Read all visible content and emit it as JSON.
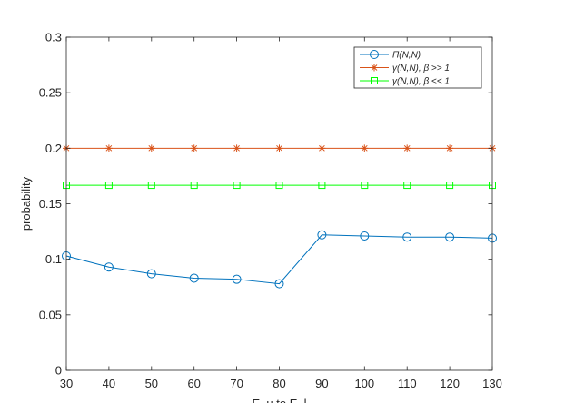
{
  "chart_data": {
    "type": "line",
    "title": "",
    "xlabel": "E_u to E_l",
    "ylabel": "probability",
    "xlim": [
      30,
      130
    ],
    "ylim": [
      0,
      0.3
    ],
    "xticks": [
      30,
      40,
      50,
      60,
      70,
      80,
      90,
      100,
      110,
      120,
      130
    ],
    "yticks": [
      0,
      0.05,
      0.1,
      0.15,
      0.2,
      0.25,
      0.3
    ],
    "ytick_labels": [
      "0",
      "0.05",
      "0.1",
      "0.15",
      "0.2",
      "0.25",
      "0.3"
    ],
    "grid": false,
    "legend_position": "top-right",
    "x": [
      30,
      40,
      50,
      60,
      70,
      80,
      90,
      100,
      110,
      120,
      130
    ],
    "series": [
      {
        "name": "Π(N,N)",
        "color": "#0072BD",
        "marker": "circle",
        "values": [
          0.103,
          0.093,
          0.087,
          0.083,
          0.082,
          0.078,
          0.122,
          0.121,
          0.12,
          0.12,
          0.119
        ]
      },
      {
        "name": "γ(N,N), β >> 1",
        "color": "#D95319",
        "marker": "asterisk",
        "values": [
          0.2,
          0.2,
          0.2,
          0.2,
          0.2,
          0.2,
          0.2,
          0.2,
          0.2,
          0.2,
          0.2
        ]
      },
      {
        "name": "γ(N,N), β << 1",
        "color": "#00FF00",
        "marker": "square",
        "values": [
          0.1667,
          0.1667,
          0.1667,
          0.1667,
          0.1667,
          0.1667,
          0.1667,
          0.1667,
          0.1667,
          0.1667,
          0.1667
        ]
      }
    ]
  }
}
